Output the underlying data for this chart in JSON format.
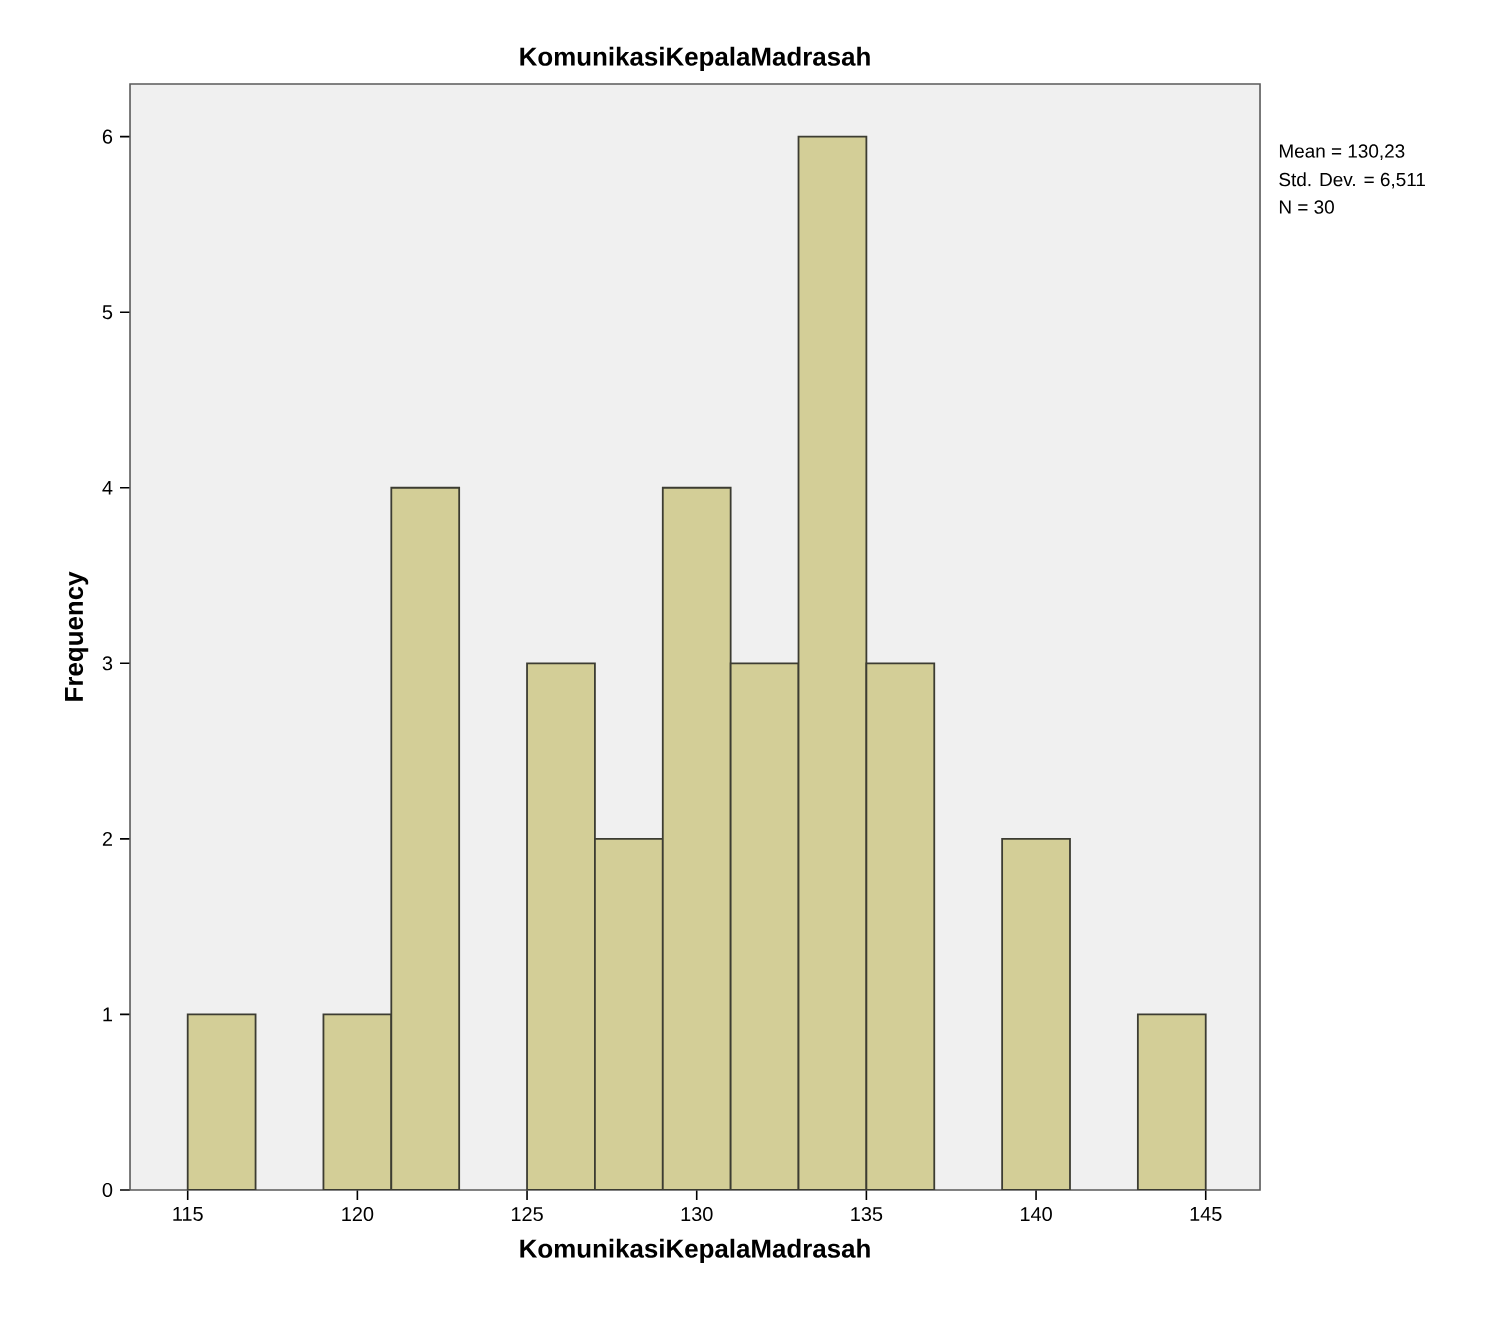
{
  "chart_data": {
    "type": "histogram",
    "title": "KomunikasiKepalaMadrasah",
    "xlabel": "KomunikasiKepalaMadrasah",
    "ylabel": "Frequency",
    "bins": [
      115,
      117,
      119,
      121,
      123,
      125,
      127,
      129,
      131,
      133,
      135,
      137,
      139,
      141,
      143,
      145
    ],
    "values": [
      1,
      0,
      1,
      4,
      0,
      3,
      2,
      4,
      3,
      6,
      3,
      0,
      2,
      0,
      1
    ],
    "color": "#d3ce97",
    "xlim": [
      113.3,
      146.6
    ],
    "ylim": [
      0,
      6.3
    ],
    "xticks": [
      115,
      120,
      125,
      130,
      135,
      140,
      145
    ],
    "yticks": [
      0,
      1,
      2,
      3,
      4,
      5,
      6
    ],
    "annotations": [
      "Mean = 130,23",
      "Std. Dev. = 6,511",
      "N = 30"
    ]
  }
}
